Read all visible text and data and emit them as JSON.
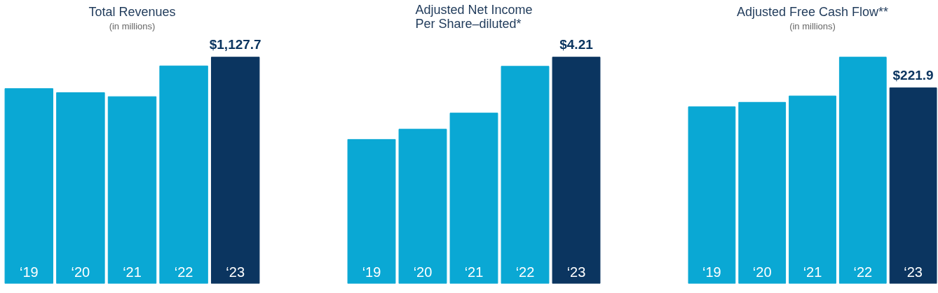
{
  "chart_data": [
    {
      "type": "bar",
      "title": "Total Revenues",
      "subtitle": "(in millions)",
      "categories": [
        "‘19",
        "‘20",
        "‘21",
        "‘22",
        "‘23"
      ],
      "values": [
        971,
        951,
        931,
        1084,
        1127.7
      ],
      "colors": [
        "#0aa8d4",
        "#0aa8d4",
        "#0aa8d4",
        "#0aa8d4",
        "#0b3560"
      ],
      "value_labels": [
        null,
        null,
        null,
        null,
        "$1,127.7"
      ],
      "grid": false
    },
    {
      "type": "bar",
      "title": "Adjusted Net Income\nPer Share–diluted*",
      "categories": [
        "‘19",
        "‘20",
        "‘21",
        "‘22",
        "‘23"
      ],
      "values": [
        2.68,
        2.87,
        3.17,
        4.04,
        4.21
      ],
      "colors": [
        "#0aa8d4",
        "#0aa8d4",
        "#0aa8d4",
        "#0aa8d4",
        "#0b3560"
      ],
      "value_labels": [
        null,
        null,
        null,
        null,
        "$4.21"
      ],
      "grid": false
    },
    {
      "type": "bar",
      "title": "Adjusted Free Cash Flow**",
      "subtitle": "(in millions)",
      "categories": [
        "‘19",
        "‘20",
        "‘21",
        "‘22",
        "‘23"
      ],
      "values": [
        200.4,
        205.5,
        212.7,
        256.7,
        221.9
      ],
      "colors": [
        "#0aa8d4",
        "#0aa8d4",
        "#0aa8d4",
        "#0aa8d4",
        "#0b3560"
      ],
      "value_labels": [
        null,
        null,
        null,
        null,
        "$221.9"
      ],
      "grid": false
    }
  ]
}
